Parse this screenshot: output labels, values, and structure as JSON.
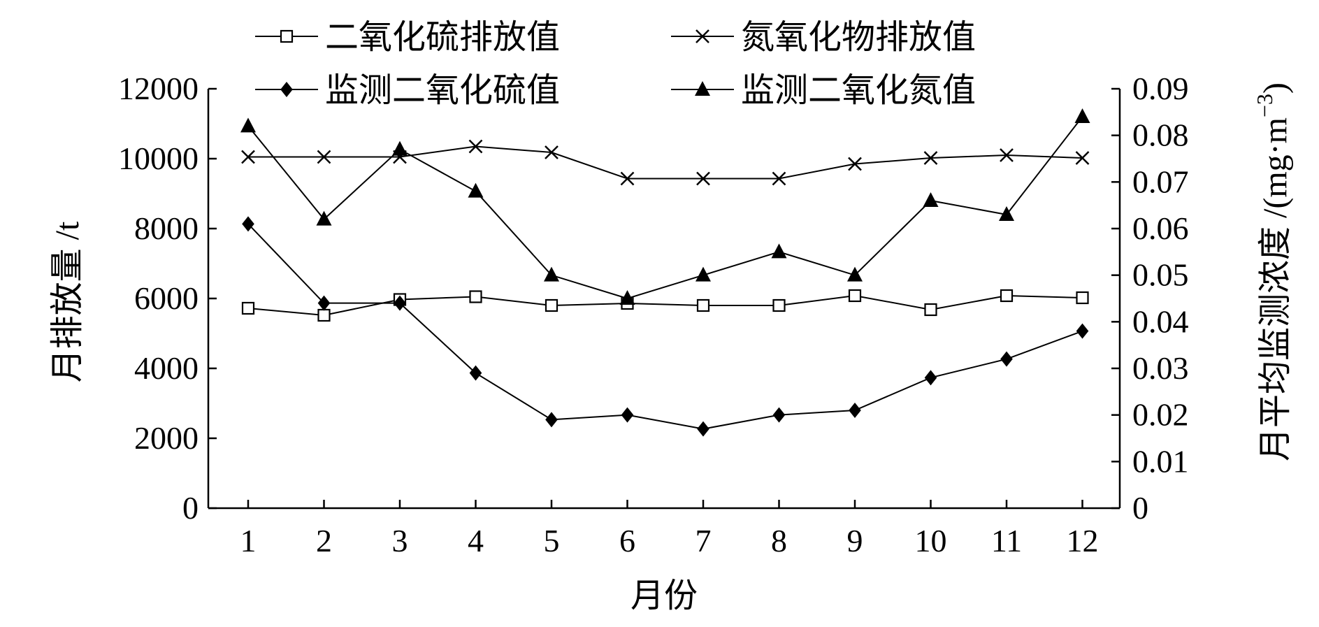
{
  "chart_data": {
    "type": "line",
    "xlabel": "月份",
    "ylabel_left": "月排放量 /t",
    "ylabel_right": "月平均监测浓度 /(mg·m",
    "ylabel_right_sup": "−3",
    "ylabel_right_close": ")",
    "x": [
      1,
      2,
      3,
      4,
      5,
      6,
      7,
      8,
      9,
      10,
      11,
      12
    ],
    "x_tick_labels": [
      "1",
      "2",
      "3",
      "4",
      "5",
      "6",
      "7",
      "8",
      "9",
      "10",
      "11",
      "12"
    ],
    "y_left_lim": [
      0,
      12000
    ],
    "y_left_ticks": [
      0,
      2000,
      4000,
      6000,
      8000,
      10000,
      12000
    ],
    "y_left_tick_labels": [
      "0",
      "2000",
      "4000",
      "6000",
      "8000",
      "10000",
      "12000"
    ],
    "y_right_lim": [
      0,
      0.09
    ],
    "y_right_ticks": [
      0,
      0.01,
      0.02,
      0.03,
      0.04,
      0.05,
      0.06,
      0.07,
      0.08,
      0.09
    ],
    "y_right_tick_labels": [
      "0",
      "0.01",
      "0.02",
      "0.03",
      "0.04",
      "0.05",
      "0.06",
      "0.07",
      "0.08",
      "0.09"
    ],
    "grid": false,
    "legend_position": "top",
    "series": [
      {
        "name": "二氧化硫排放值",
        "axis": "left",
        "marker": "square-open",
        "values": [
          5720,
          5520,
          5970,
          6050,
          5800,
          5860,
          5800,
          5800,
          6080,
          5680,
          6080,
          6020
        ]
      },
      {
        "name": "氮氧化物排放值",
        "axis": "left",
        "marker": "x",
        "values": [
          10050,
          10050,
          10050,
          10350,
          10180,
          9430,
          9430,
          9430,
          9850,
          10020,
          10100,
          10020
        ]
      },
      {
        "name": "监测二氧化硫值",
        "axis": "right",
        "marker": "diamond-filled",
        "values": [
          0.061,
          0.044,
          0.044,
          0.029,
          0.019,
          0.02,
          0.017,
          0.02,
          0.021,
          0.028,
          0.032,
          0.038
        ]
      },
      {
        "name": "监测二氧化氮值",
        "axis": "right",
        "marker": "triangle-filled",
        "values": [
          0.082,
          0.062,
          0.077,
          0.068,
          0.05,
          0.045,
          0.05,
          0.055,
          0.05,
          0.066,
          0.063,
          0.084
        ]
      }
    ]
  }
}
